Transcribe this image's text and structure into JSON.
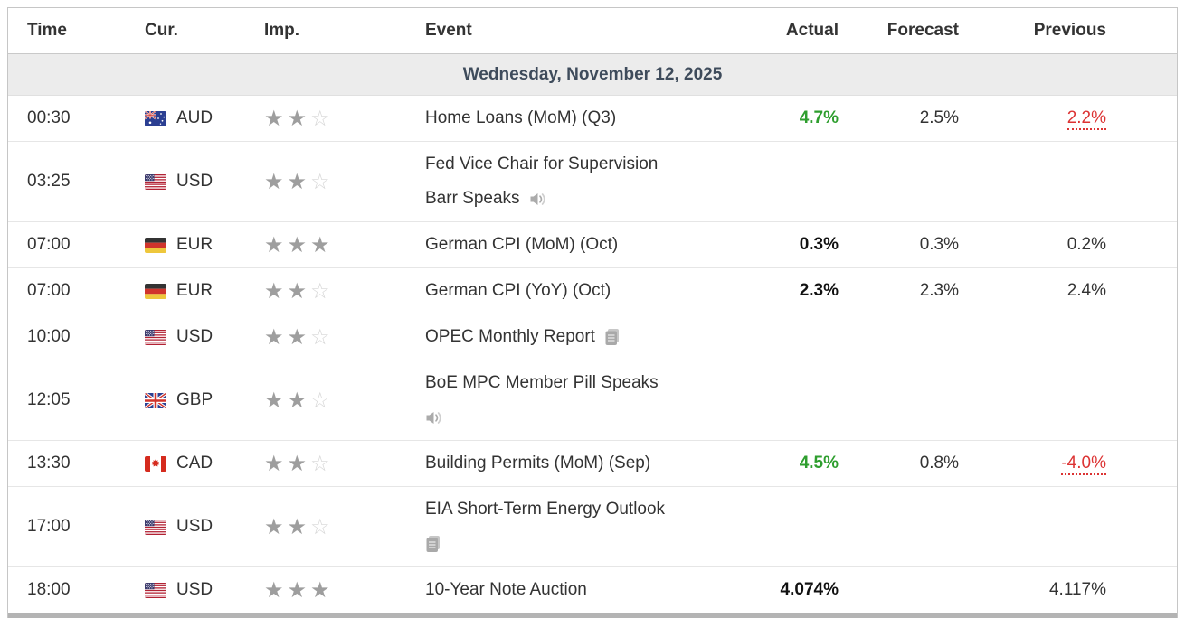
{
  "colors": {
    "positive_green": "#2e9e2e",
    "revised_red": "#dc3333",
    "date_bar_bg": "#ececec",
    "date_text": "#3e4b5b",
    "star_filled": "#9e9e9e",
    "star_empty": "#d6d6d6"
  },
  "table": {
    "columns": [
      {
        "label": "Time"
      },
      {
        "label": "Cur."
      },
      {
        "label": "Imp."
      },
      {
        "label": "Event"
      },
      {
        "label": "Actual"
      },
      {
        "label": "Forecast"
      },
      {
        "label": "Previous"
      }
    ],
    "date_header": "Wednesday, November 12, 2025",
    "rows": [
      {
        "time": "00:30",
        "currency": "AUD",
        "flag": "australia-flag",
        "importance": 2,
        "event_lines": [
          "Home Loans (MoM) (Q3)"
        ],
        "event_icon": null,
        "icon_line": 0,
        "actual": "4.7%",
        "actual_class": "act-green",
        "forecast": "2.5%",
        "previous": "2.2%",
        "previous_class": "rev-red"
      },
      {
        "time": "03:25",
        "currency": "USD",
        "flag": "us-flag",
        "importance": 2,
        "event_lines": [
          "Fed Vice Chair for Supervision",
          "Barr Speaks"
        ],
        "event_icon": "speaker-icon",
        "icon_line": 2,
        "actual": "",
        "forecast": "",
        "previous": ""
      },
      {
        "time": "07:00",
        "currency": "EUR",
        "flag": "germany-flag",
        "importance": 3,
        "event_lines": [
          "German CPI (MoM) (Oct)"
        ],
        "event_icon": null,
        "icon_line": 0,
        "actual": "0.3%",
        "actual_class": "act-bold",
        "forecast": "0.3%",
        "previous": "0.2%"
      },
      {
        "time": "07:00",
        "currency": "EUR",
        "flag": "germany-flag",
        "importance": 2,
        "event_lines": [
          "German CPI (YoY) (Oct)"
        ],
        "event_icon": null,
        "icon_line": 0,
        "actual": "2.3%",
        "actual_class": "act-bold",
        "forecast": "2.3%",
        "previous": "2.4%"
      },
      {
        "time": "10:00",
        "currency": "USD",
        "flag": "us-flag",
        "importance": 2,
        "event_lines": [
          "OPEC Monthly Report"
        ],
        "event_icon": "report-icon",
        "icon_line": 1,
        "actual": "",
        "forecast": "",
        "previous": ""
      },
      {
        "time": "12:05",
        "currency": "GBP",
        "flag": "uk-flag",
        "importance": 2,
        "event_lines": [
          "BoE MPC Member Pill Speaks",
          ""
        ],
        "event_icon": "speaker-icon",
        "icon_line": 2,
        "actual": "",
        "forecast": "",
        "previous": ""
      },
      {
        "time": "13:30",
        "currency": "CAD",
        "flag": "canada-flag",
        "importance": 2,
        "event_lines": [
          "Building Permits (MoM) (Sep)"
        ],
        "event_icon": null,
        "icon_line": 0,
        "actual": "4.5%",
        "actual_class": "act-green",
        "forecast": "0.8%",
        "previous": "-4.0%",
        "previous_class": "rev-red"
      },
      {
        "time": "17:00",
        "currency": "USD",
        "flag": "us-flag",
        "importance": 2,
        "event_lines": [
          "EIA Short-Term Energy Outlook",
          ""
        ],
        "event_icon": "report-icon",
        "icon_line": 2,
        "actual": "",
        "forecast": "",
        "previous": ""
      },
      {
        "time": "18:00",
        "currency": "USD",
        "flag": "us-flag",
        "importance": 3,
        "event_lines": [
          "10-Year Note Auction"
        ],
        "event_icon": null,
        "icon_line": 0,
        "actual": "4.074%",
        "actual_class": "act-bold",
        "forecast": "",
        "previous": "4.117%"
      }
    ]
  }
}
